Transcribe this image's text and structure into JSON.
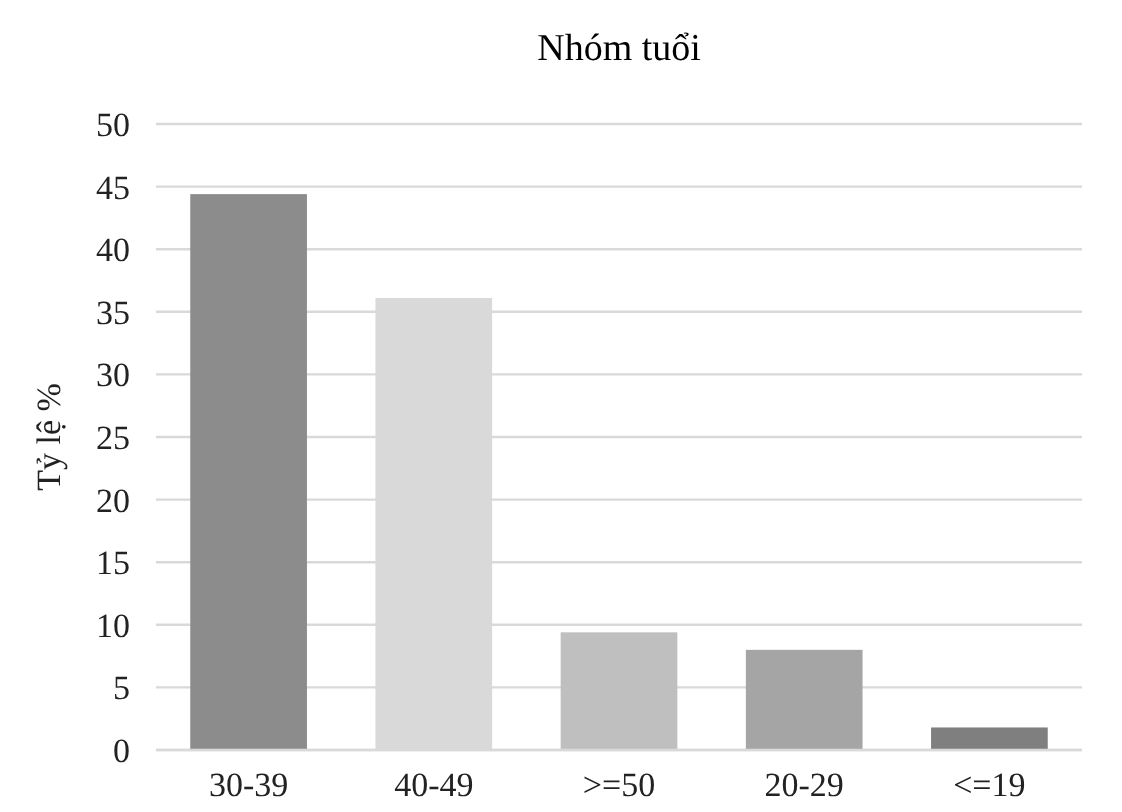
{
  "chart_data": {
    "type": "bar",
    "title": "Nhóm tuổi",
    "ylabel": "Tỷ lệ %",
    "categories": [
      "30-39",
      "40-49",
      ">=50",
      "20-29",
      "<=19"
    ],
    "values": [
      44.4,
      36.1,
      9.4,
      8.0,
      1.8
    ],
    "colors": [
      "#8c8c8c",
      "#d9d9d9",
      "#bfbfbf",
      "#a5a5a5",
      "#7f7f7f"
    ],
    "ylim": [
      0,
      50
    ],
    "yticks": [
      0,
      5,
      10,
      15,
      20,
      25,
      30,
      35,
      40,
      45,
      50
    ],
    "grid": "y"
  }
}
